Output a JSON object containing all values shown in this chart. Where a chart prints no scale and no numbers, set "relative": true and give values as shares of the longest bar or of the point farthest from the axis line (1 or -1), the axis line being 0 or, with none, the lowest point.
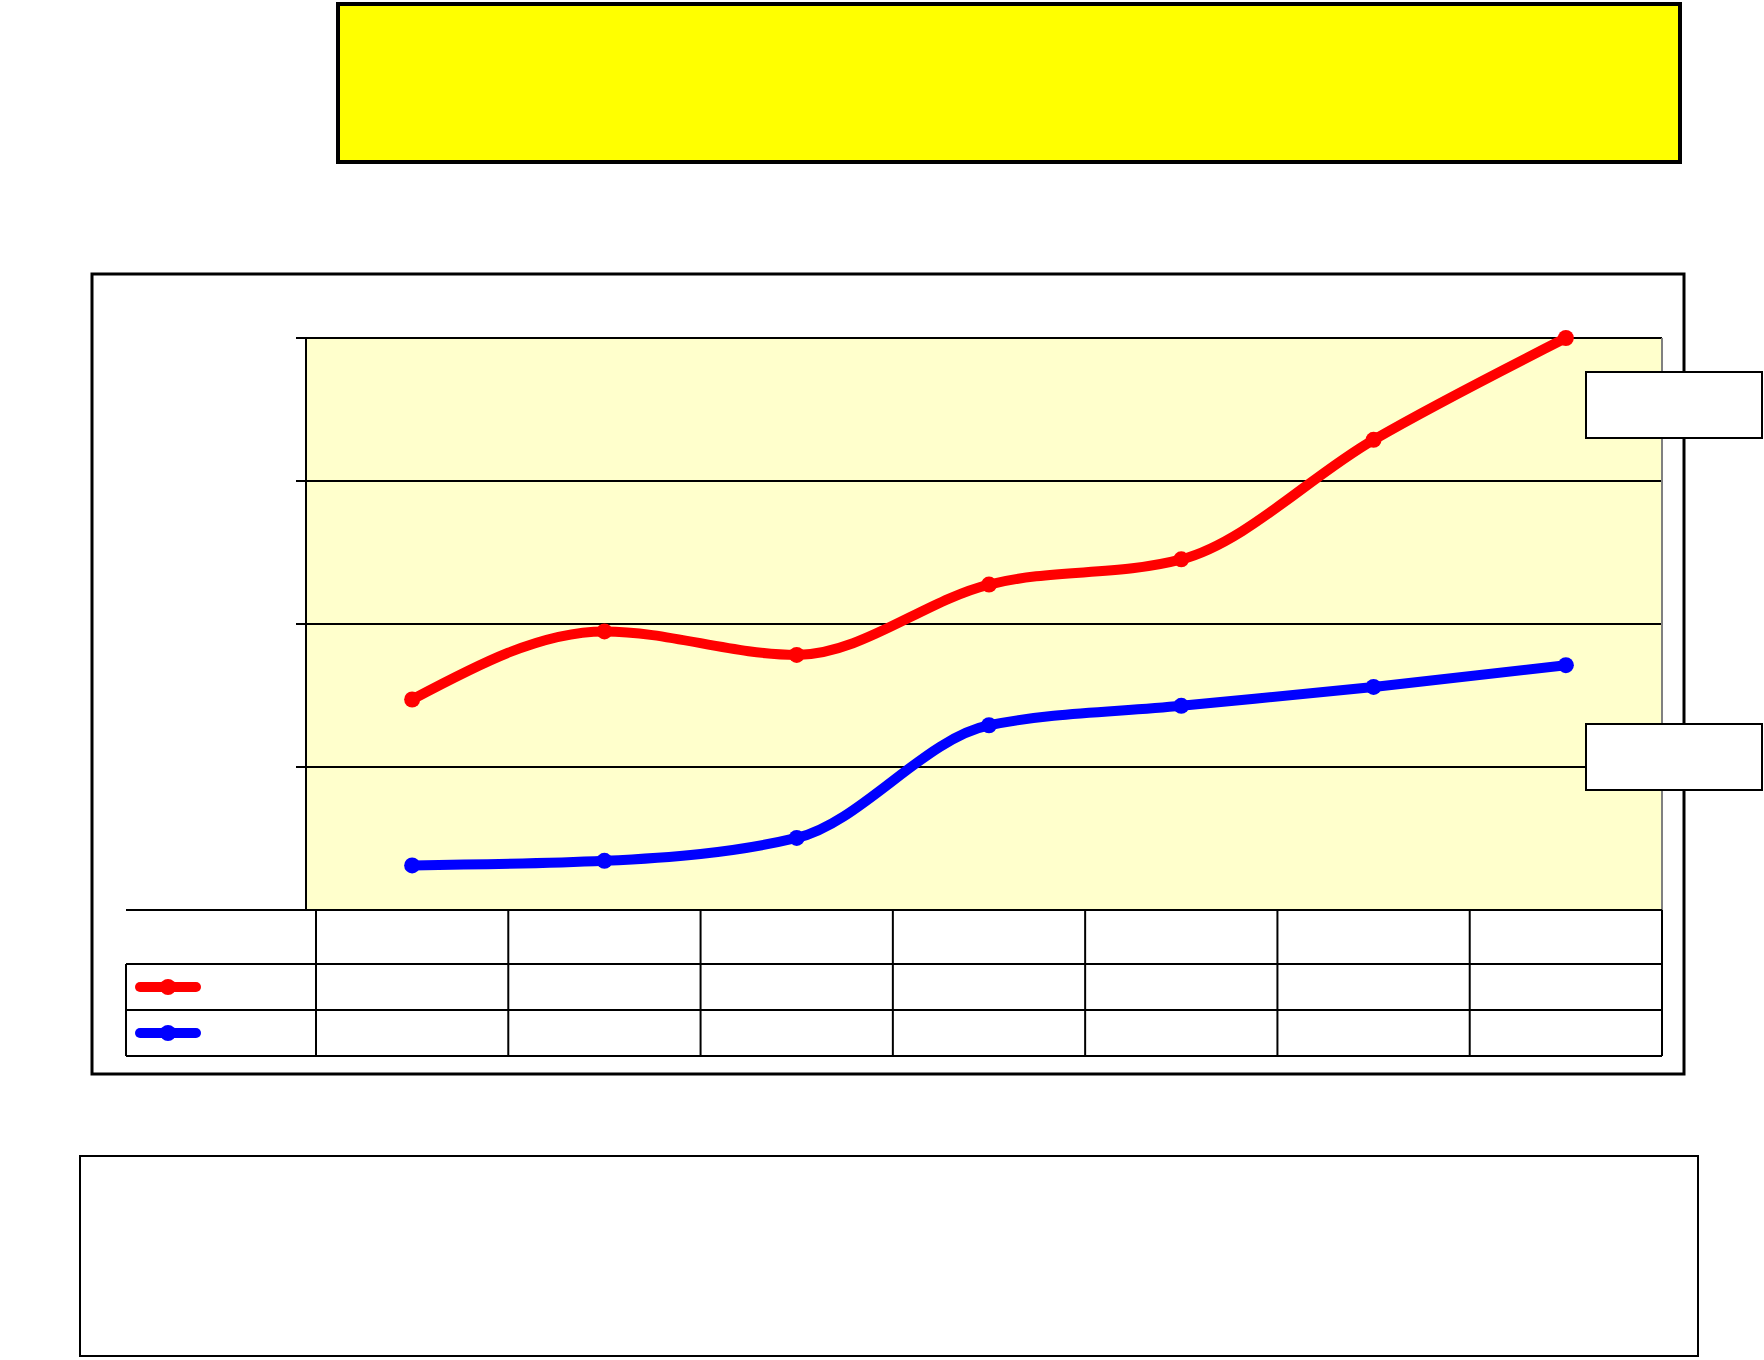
{
  "chart_data": {
    "type": "line",
    "relative": true,
    "categories": [
      null,
      null,
      null,
      null,
      null,
      null,
      null
    ],
    "series": [
      {
        "color": "#ff0000",
        "values": [
          0.368,
          0.487,
          0.446,
          0.569,
          0.613,
          0.822,
          1
        ]
      },
      {
        "color": "#0000ff",
        "values": [
          0.078,
          0.086,
          0.126,
          0.323,
          0.357,
          0.39,
          0.428
        ]
      }
    ],
    "grid": "y",
    "marker": "circle",
    "line_style": "solid"
  }
}
